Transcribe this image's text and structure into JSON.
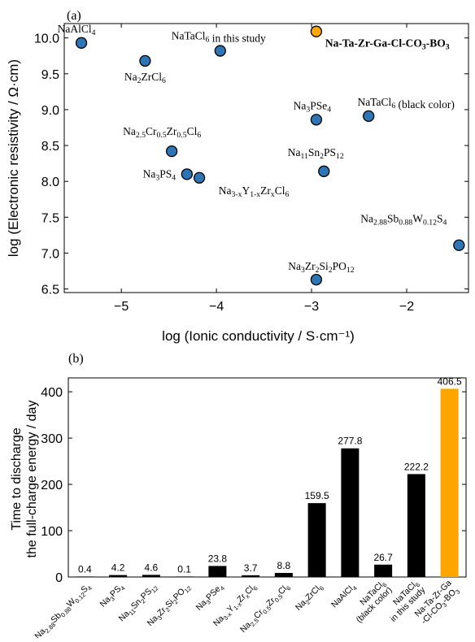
{
  "chart_data": [
    {
      "type": "scatter",
      "panel_label": "(a)",
      "xlabel": "log (Ionic conductivity / S·cm⁻¹)",
      "ylabel": "log (Electronic resistivity / Ω·cm)",
      "xlim": [
        -5.6,
        -1.35
      ],
      "ylim": [
        6.45,
        10.2
      ],
      "xticks": [
        -5,
        -4,
        -3,
        -2
      ],
      "xtick_labels": [
        "−5",
        "−4",
        "−3",
        "−2"
      ],
      "yticks": [
        6.5,
        7.0,
        7.5,
        8.0,
        8.5,
        9.0,
        9.5,
        10.0
      ],
      "ytick_labels": [
        "6.5",
        "7.0",
        "7.5",
        "8.0",
        "8.5",
        "9.0",
        "9.5",
        "10.0"
      ],
      "grid": false,
      "point_color": "#2e75b6",
      "highlight_color": "#ffa500",
      "points": [
        {
          "label": "NaAlCl4",
          "x": -5.42,
          "y": 9.93
        },
        {
          "label": "Na2ZrCl6",
          "x": -4.75,
          "y": 9.68
        },
        {
          "label": "NaTaCl6 in this study",
          "x": -3.96,
          "y": 9.82
        },
        {
          "label": "Na-Ta-Zr-Ga-Cl-CO3-BO3",
          "x": -2.95,
          "y": 10.09,
          "highlight": true
        },
        {
          "label": "Na3PSe4",
          "x": -2.95,
          "y": 8.86
        },
        {
          "label": "NaTaCl6 (black color)",
          "x": -2.4,
          "y": 8.91
        },
        {
          "label": "Na2.5Cr0.5Zr0.5Cl6",
          "x": -4.47,
          "y": 8.42
        },
        {
          "label": "Na11Sn2PS12",
          "x": -2.87,
          "y": 8.14
        },
        {
          "label": "Na3PS4",
          "x": -4.31,
          "y": 8.1
        },
        {
          "label": "Na3-xY1-xZrxCl6",
          "x": -4.18,
          "y": 8.05
        },
        {
          "label": "Na2.88Sb0.88W0.12S4",
          "x": -1.45,
          "y": 7.11
        },
        {
          "label": "Na3Zr2Si2PO12",
          "x": -2.95,
          "y": 6.63
        }
      ]
    },
    {
      "type": "bar",
      "panel_label": "(b)",
      "ylabel": "Time to discharge the full-charge energy / day",
      "ylabel_lines": [
        "Time to discharge",
        "the full-charge energy / day"
      ],
      "ylim": [
        0,
        430
      ],
      "yticks": [
        0,
        100,
        200,
        300,
        400
      ],
      "grid": false,
      "bar_color": "#000000",
      "highlight_color": "#ffa500",
      "categories": [
        "Na2.88Sb0.88W0.12S4",
        "Na3PS4",
        "Na11Sn2PS12",
        "Na3Zr2Si2PO12",
        "Na3PSe4",
        "Na3-xY1-xZrxCl6",
        "Na2.5Cr0.5Zr0.5Cl6",
        "Na2ZrCl6",
        "NaAlCl4",
        "NaTaCl6 (black color)",
        "NaTaCl6 in this study",
        "Na-Ta-Zr-Ga-Cl-CO3-BO3"
      ],
      "values": [
        0.4,
        4.2,
        4.6,
        0.1,
        23.8,
        3.7,
        8.8,
        159.5,
        277.8,
        26.7,
        222.2,
        406.5
      ],
      "value_labels": [
        "0.4",
        "4.2",
        "4.6",
        "0.1",
        "23.8",
        "3.7",
        "8.8",
        "159.5",
        "277.8",
        "26.7",
        "222.2",
        "406.5"
      ],
      "highlight_index": 11
    }
  ]
}
